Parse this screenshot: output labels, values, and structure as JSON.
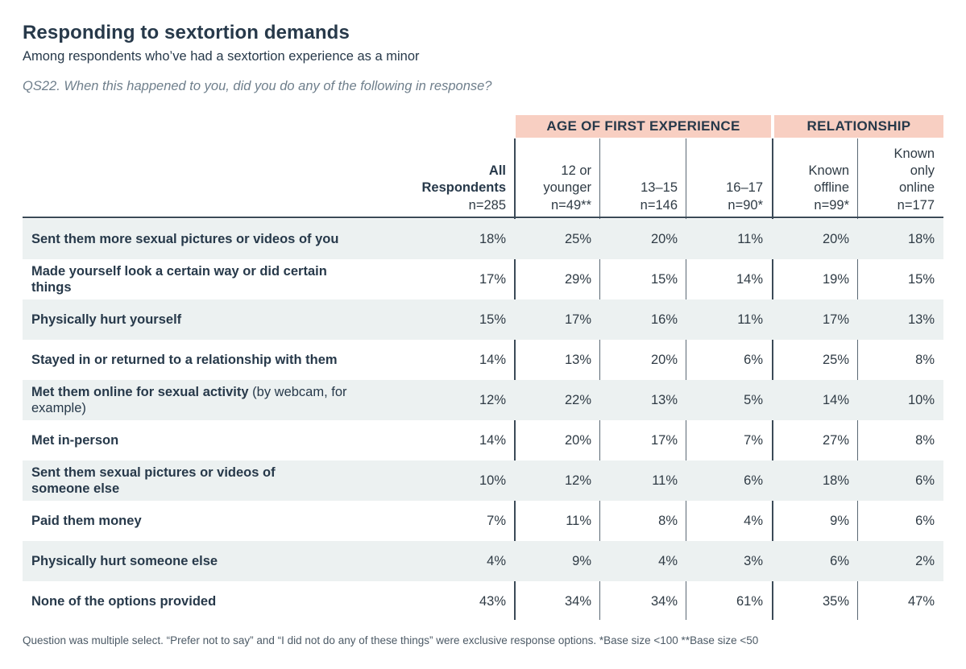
{
  "title": "Responding to sextortion demands",
  "subtitle": "Among respondents who’ve had a sextortion experience as a minor",
  "question": "QS22. When this happened to you, did you do any of the following in response?",
  "groups": {
    "age": "AGE OF FIRST EXPERIENCE",
    "relationship": "RELATIONSHIP"
  },
  "columns": [
    {
      "lines": [
        "All",
        "Respondents"
      ],
      "n": "n=285"
    },
    {
      "lines": [
        "12 or",
        "younger"
      ],
      "n": "n=49**"
    },
    {
      "lines": [
        "13–15"
      ],
      "n": "n=146"
    },
    {
      "lines": [
        "16–17"
      ],
      "n": "n=90*"
    },
    {
      "lines": [
        "Known",
        "offline"
      ],
      "n": "n=99*"
    },
    {
      "lines": [
        "Known",
        "only",
        "online"
      ],
      "n": "n=177"
    }
  ],
  "rows": [
    {
      "bold": "Sent them more sexual pictures or videos of you",
      "rest": "",
      "values": [
        "18%",
        "25%",
        "20%",
        "11%",
        "20%",
        "18%"
      ]
    },
    {
      "bold": "Made yourself look a certain way or did certain things",
      "rest": "",
      "values": [
        "17%",
        "29%",
        "15%",
        "14%",
        "19%",
        "15%"
      ]
    },
    {
      "bold": "Physically hurt yourself",
      "rest": "",
      "values": [
        "15%",
        "17%",
        "16%",
        "11%",
        "17%",
        "13%"
      ]
    },
    {
      "bold": "Stayed in or returned to a relationship with them",
      "rest": "",
      "values": [
        "14%",
        "13%",
        "20%",
        "6%",
        "25%",
        "8%"
      ]
    },
    {
      "bold": "Met them online for sexual activity",
      "rest": " (by webcam, for example)",
      "values": [
        "12%",
        "22%",
        "13%",
        "5%",
        "14%",
        "10%"
      ]
    },
    {
      "bold": "Met in-person",
      "rest": "",
      "values": [
        "14%",
        "20%",
        "17%",
        "7%",
        "27%",
        "8%"
      ]
    },
    {
      "bold": "Sent them sexual pictures or videos of someone else",
      "rest": "",
      "values": [
        "10%",
        "12%",
        "11%",
        "6%",
        "18%",
        "6%"
      ]
    },
    {
      "bold": "Paid them money",
      "rest": "",
      "values": [
        "7%",
        "11%",
        "8%",
        "4%",
        "9%",
        "6%"
      ]
    },
    {
      "bold": "Physically hurt someone else",
      "rest": "",
      "values": [
        "4%",
        "9%",
        "4%",
        "3%",
        "6%",
        "2%"
      ]
    },
    {
      "bold": "None of the options provided",
      "rest": "",
      "values": [
        "43%",
        "34%",
        "34%",
        "61%",
        "35%",
        "47%"
      ]
    }
  ],
  "footnote": "Question was multiple select. “Prefer not to say” and “I did not do any of these things” were exclusive response options. *Base size <100 **Base size <50"
}
